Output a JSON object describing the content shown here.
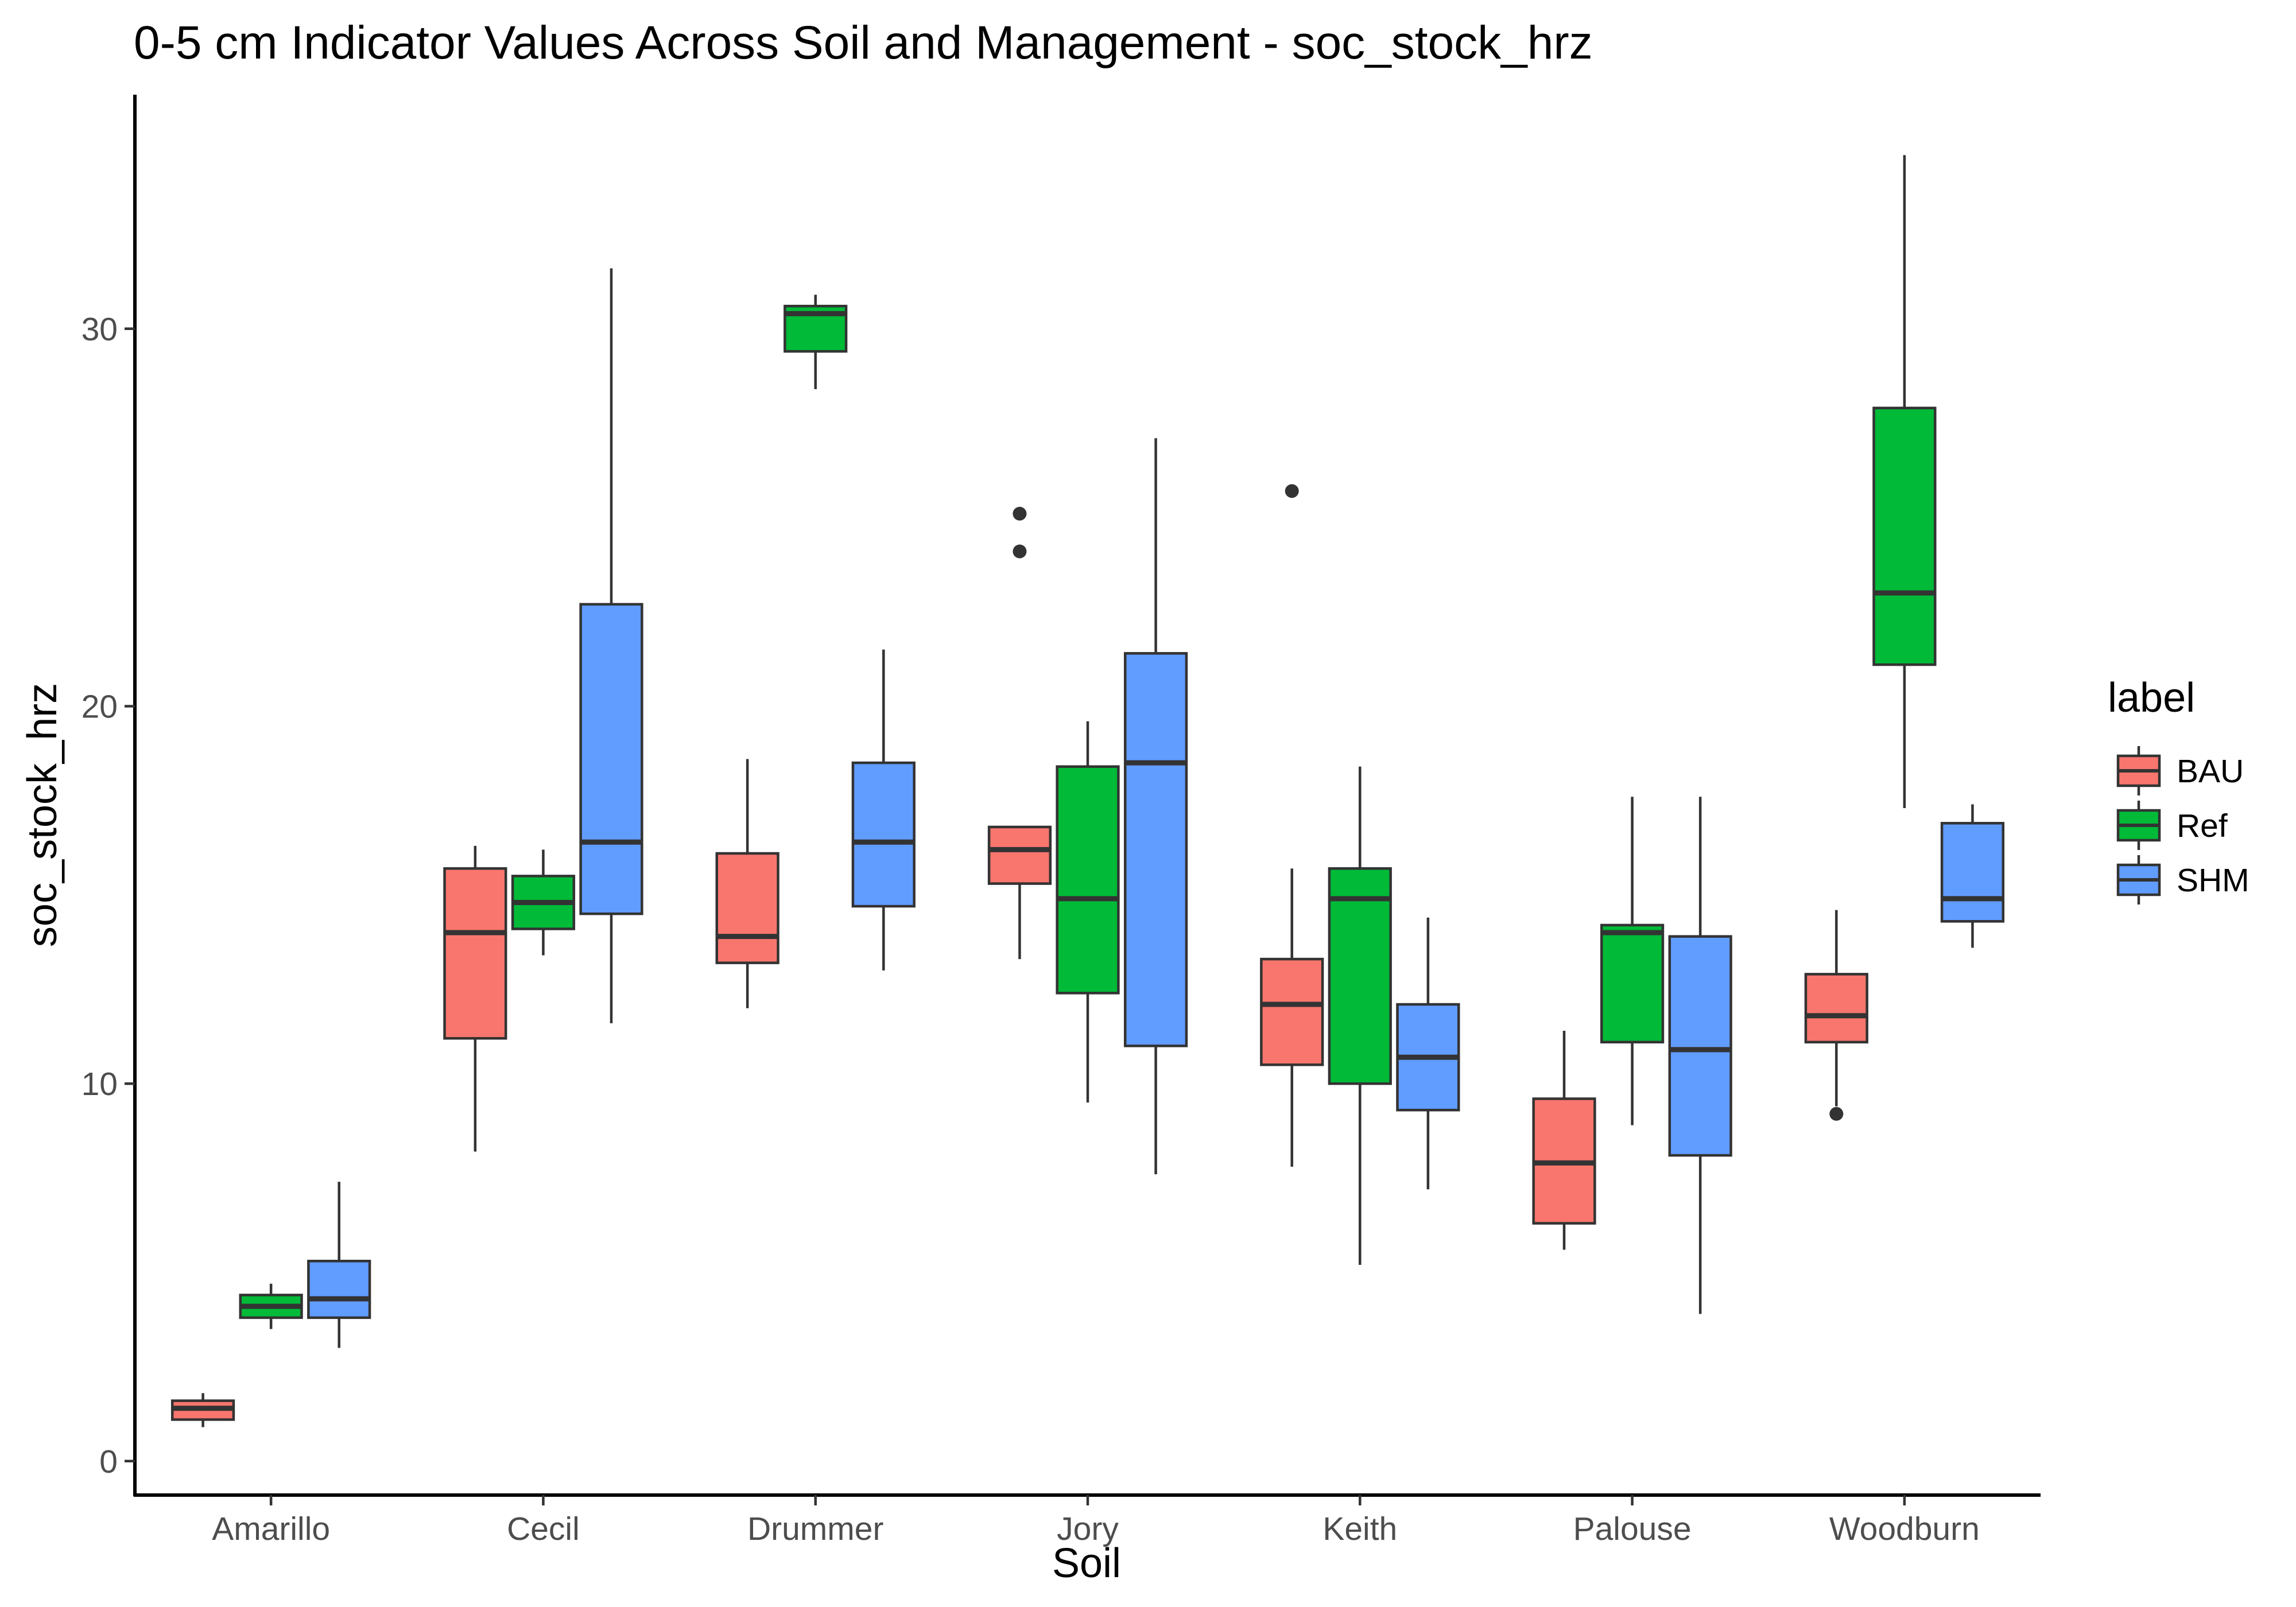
{
  "chart_data": {
    "type": "box",
    "title": "0-5 cm Indicator Values Across Soil and Management - soc_stock_hrz",
    "xlabel": "Soil",
    "ylabel": "soc_stock_hrz",
    "ylim": [
      -0.9,
      36.2
    ],
    "yticks": [
      0,
      10,
      20,
      30
    ],
    "grid": false,
    "legend_title": "label",
    "legend_position": "right",
    "categories": [
      "Amarillo",
      "Cecil",
      "Drummer",
      "Jory",
      "Keith",
      "Palouse",
      "Woodburn"
    ],
    "series": [
      {
        "name": "BAU",
        "color": "#F8766D",
        "boxes": [
          {
            "min": 0.9,
            "q1": 1.1,
            "median": 1.4,
            "q3": 1.6,
            "max": 1.8,
            "outliers": []
          },
          {
            "min": 8.2,
            "q1": 11.2,
            "median": 14.0,
            "q3": 15.7,
            "max": 16.3,
            "outliers": []
          },
          {
            "min": 12.0,
            "q1": 13.2,
            "median": 13.9,
            "q3": 16.1,
            "max": 18.6,
            "outliers": []
          },
          {
            "min": 13.3,
            "q1": 15.3,
            "median": 16.2,
            "q3": 16.8,
            "max": 16.8,
            "outliers": [
              25.1,
              24.1
            ]
          },
          {
            "min": 7.8,
            "q1": 10.5,
            "median": 12.1,
            "q3": 13.3,
            "max": 15.7,
            "outliers": [
              25.7
            ]
          },
          {
            "min": 5.6,
            "q1": 6.3,
            "median": 7.9,
            "q3": 9.6,
            "max": 11.4,
            "outliers": []
          },
          {
            "min": 9.4,
            "q1": 11.1,
            "median": 11.8,
            "q3": 12.9,
            "max": 14.6,
            "outliers": [
              9.2
            ]
          }
        ]
      },
      {
        "name": "Ref",
        "color": "#00BA38",
        "boxes": [
          {
            "min": 3.5,
            "q1": 3.8,
            "median": 4.1,
            "q3": 4.4,
            "max": 4.7,
            "outliers": []
          },
          {
            "min": 13.4,
            "q1": 14.1,
            "median": 14.8,
            "q3": 15.5,
            "max": 16.2,
            "outliers": []
          },
          {
            "min": 28.4,
            "q1": 29.4,
            "median": 30.4,
            "q3": 30.6,
            "max": 30.9,
            "outliers": []
          },
          {
            "min": 9.5,
            "q1": 12.4,
            "median": 14.9,
            "q3": 18.4,
            "max": 19.6,
            "outliers": []
          },
          {
            "min": 5.2,
            "q1": 10.0,
            "median": 14.9,
            "q3": 15.7,
            "max": 18.4,
            "outliers": []
          },
          {
            "min": 8.9,
            "q1": 11.1,
            "median": 14.0,
            "q3": 14.2,
            "max": 17.6,
            "outliers": []
          },
          {
            "min": 17.3,
            "q1": 21.1,
            "median": 23.0,
            "q3": 27.9,
            "max": 34.6,
            "outliers": []
          }
        ]
      },
      {
        "name": "SHM",
        "color": "#619CFF",
        "boxes": [
          {
            "min": 3.0,
            "q1": 3.8,
            "median": 4.3,
            "q3": 5.3,
            "max": 7.4,
            "outliers": []
          },
          {
            "min": 11.6,
            "q1": 14.5,
            "median": 16.4,
            "q3": 22.7,
            "max": 31.6,
            "outliers": []
          },
          {
            "min": 13.0,
            "q1": 14.7,
            "median": 16.4,
            "q3": 18.5,
            "max": 21.5,
            "outliers": []
          },
          {
            "min": 7.6,
            "q1": 11.0,
            "median": 18.5,
            "q3": 21.4,
            "max": 27.1,
            "outliers": []
          },
          {
            "min": 7.2,
            "q1": 9.3,
            "median": 10.7,
            "q3": 12.1,
            "max": 14.4,
            "outliers": []
          },
          {
            "min": 3.9,
            "q1": 8.1,
            "median": 10.9,
            "q3": 13.9,
            "max": 17.6,
            "outliers": []
          },
          {
            "min": 13.6,
            "q1": 14.3,
            "median": 14.9,
            "q3": 16.9,
            "max": 17.4,
            "outliers": []
          }
        ]
      }
    ]
  }
}
